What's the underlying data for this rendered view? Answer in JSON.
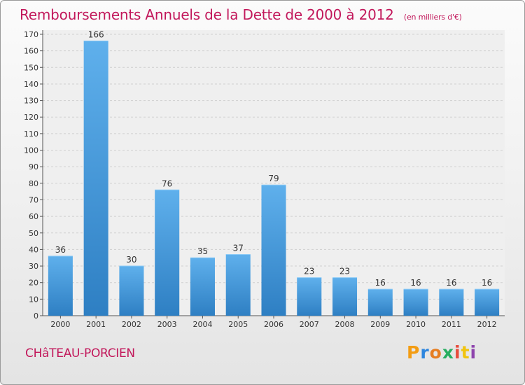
{
  "header": {
    "title": "Remboursements Annuels de la Dette de 2000 à 2012",
    "unit": "(en milliers d'€)"
  },
  "footer": {
    "town": "CHâTEAU-PORCIEN",
    "logo": [
      "P",
      "r",
      "o",
      "x",
      "i",
      "t",
      "i"
    ]
  },
  "colors": {
    "bar": "#3e95d8",
    "title": "#c2185b",
    "logo": [
      "#f39c12",
      "#2e86de",
      "#e67e22",
      "#27ae60",
      "#e74c3c",
      "#f1c40f",
      "#8e44ad"
    ]
  },
  "chart_data": {
    "type": "bar",
    "categories": [
      "2000",
      "2001",
      "2002",
      "2003",
      "2004",
      "2005",
      "2006",
      "2007",
      "2008",
      "2009",
      "2010",
      "2011",
      "2012"
    ],
    "values": [
      36,
      166,
      30,
      76,
      35,
      37,
      79,
      23,
      23,
      16,
      16,
      16,
      16
    ],
    "ylim": [
      0,
      170
    ],
    "yticks": [
      0,
      10,
      20,
      30,
      40,
      50,
      60,
      70,
      80,
      90,
      100,
      110,
      120,
      130,
      140,
      150,
      160,
      170
    ],
    "grid": true
  }
}
